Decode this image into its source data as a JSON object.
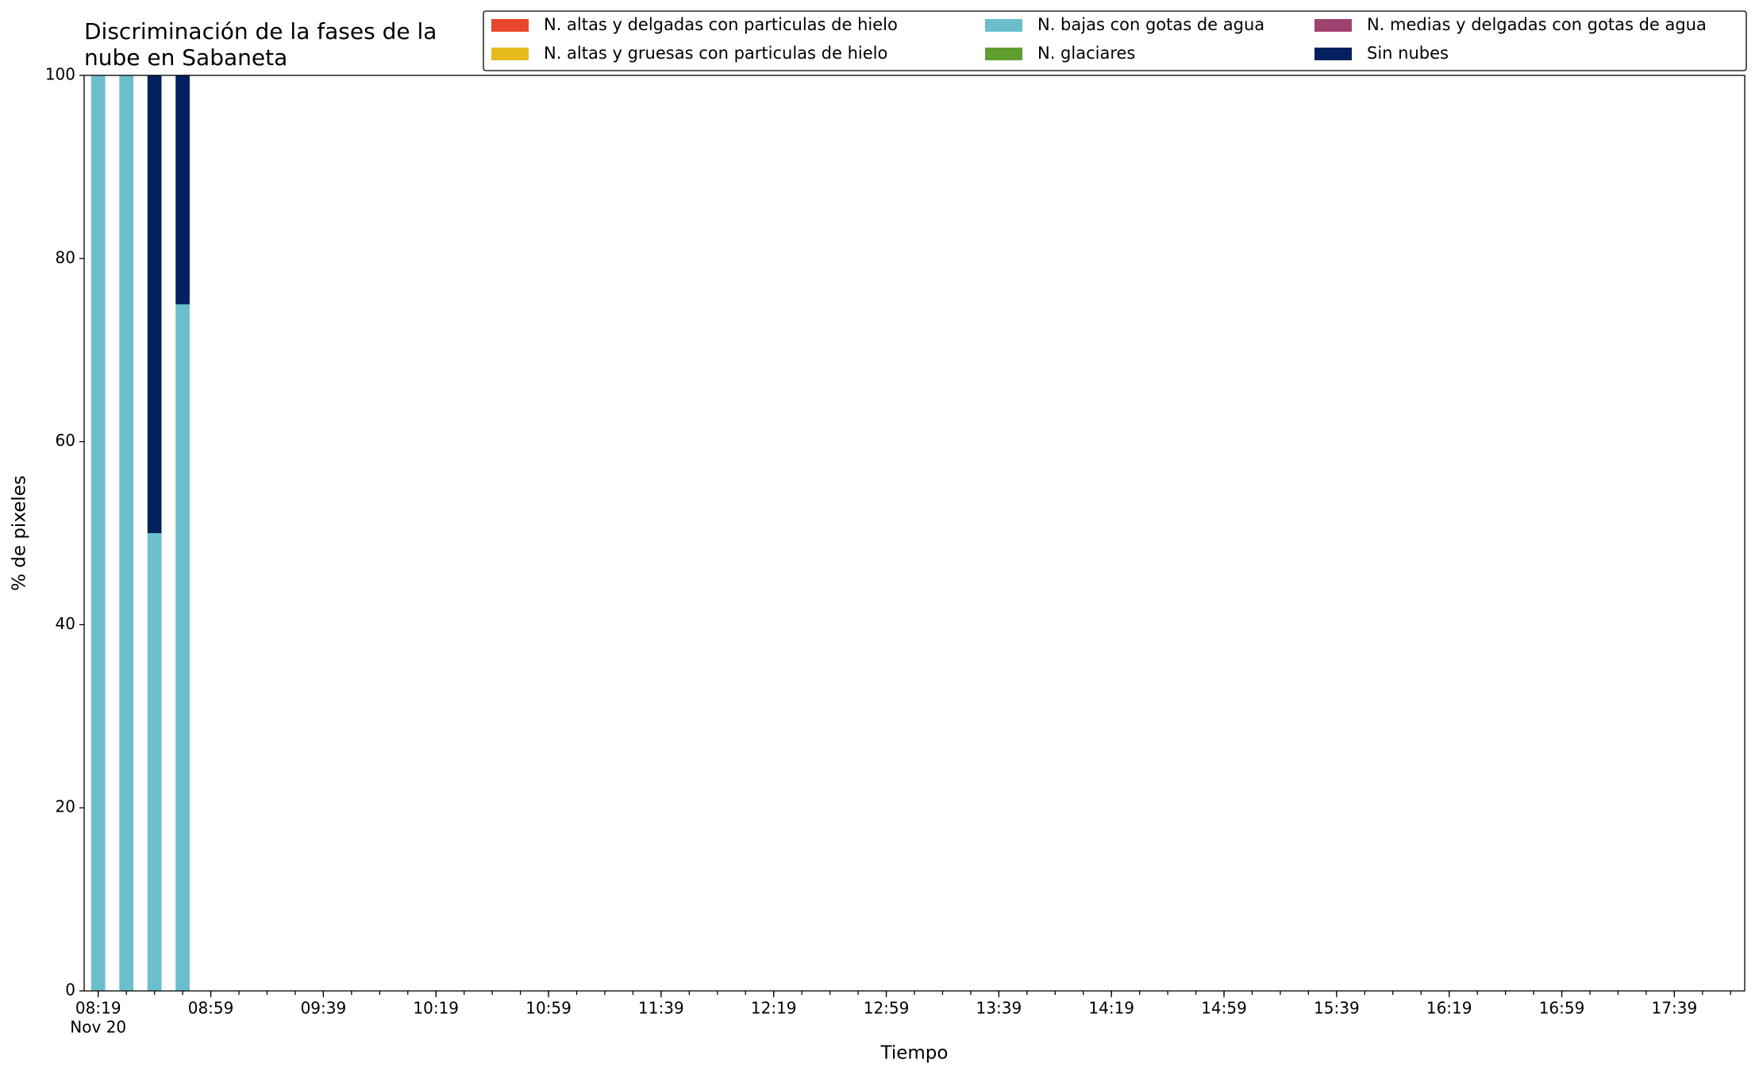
{
  "chart_data": {
    "type": "bar",
    "stacked": true,
    "title": [
      "Discriminación de la fases de la",
      "nube en Sabaneta"
    ],
    "xlabel": "Tiempo",
    "ylabel": "% de pixeles",
    "x": [
      "08:19",
      "08:29",
      "08:39",
      "08:49"
    ],
    "series": [
      {
        "name": "N. altas y delgadas con particulas de hielo",
        "color": "#e8472e",
        "values": [
          0,
          0,
          0,
          0
        ]
      },
      {
        "name": "N. altas y gruesas con particulas de hielo",
        "color": "#e6b91e",
        "values": [
          0,
          0,
          0,
          0
        ]
      },
      {
        "name": "N. bajas con gotas de agua",
        "color": "#6bbfcc",
        "values": [
          100,
          100,
          50,
          75
        ]
      },
      {
        "name": "N. glaciares",
        "color": "#5f9e2f",
        "values": [
          0,
          0,
          0,
          0
        ]
      },
      {
        "name": "N. medias y delgadas con gotas de agua",
        "color": "#a0426f",
        "values": [
          0,
          0,
          0,
          0
        ]
      },
      {
        "name": "Sin nubes",
        "color": "#03205f",
        "values": [
          0,
          0,
          50,
          25
        ]
      }
    ],
    "xlim": [
      "08:14",
      "18:04"
    ],
    "xticks": [
      "08:19",
      "08:59",
      "09:39",
      "10:19",
      "10:59",
      "11:39",
      "12:19",
      "12:59",
      "13:39",
      "14:19",
      "14:59",
      "15:39",
      "16:19",
      "16:59",
      "17:39"
    ],
    "x_date_label": "Nov 20",
    "ylim": [
      0,
      100
    ],
    "yticks": [
      0,
      20,
      40,
      60,
      80,
      100
    ],
    "grid": false,
    "legend": "upper right",
    "legend_columns": 3
  }
}
